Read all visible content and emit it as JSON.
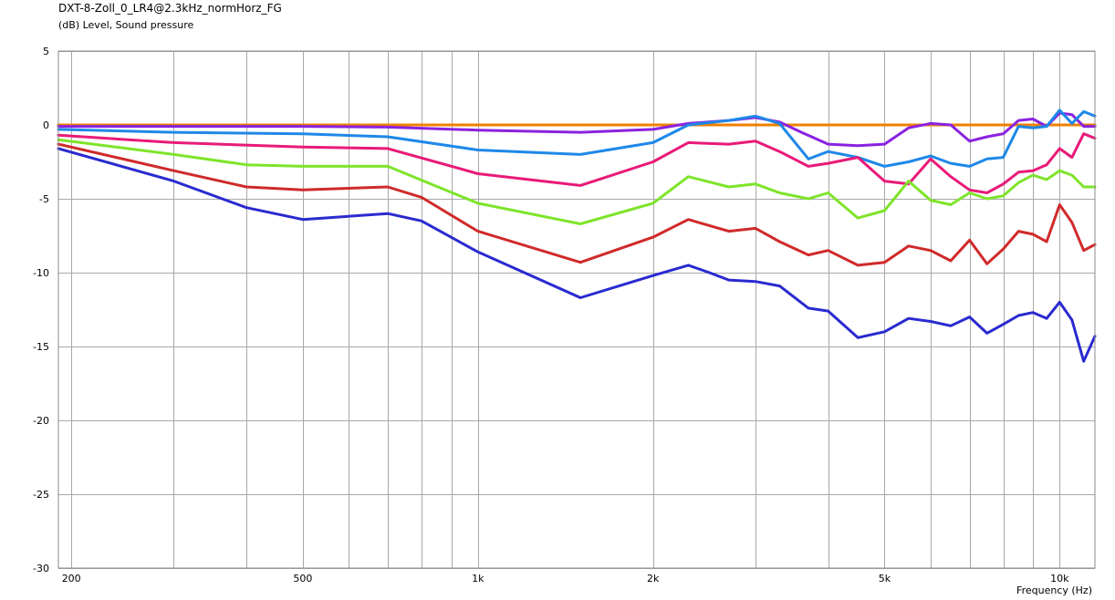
{
  "chart_data": {
    "type": "line",
    "title": "DXT-8-Zoll_0_LR4@2.3kHz_normHorz_FG",
    "subtitle": "(dB)  Level, Sound pressure",
    "xlabel": "Frequency  (Hz)",
    "x_scale": "log",
    "xlim": [
      190,
      11500
    ],
    "ylim": [
      -30,
      5
    ],
    "grid": true,
    "x_tick_labels": [
      {
        "value": 200,
        "label": "200"
      },
      {
        "value": 500,
        "label": "500"
      },
      {
        "value": 1000,
        "label": "1k"
      },
      {
        "value": 2000,
        "label": "2k"
      },
      {
        "value": 5000,
        "label": "5k"
      },
      {
        "value": 10000,
        "label": "10k"
      }
    ],
    "y_tick_labels": [
      {
        "value": 5,
        "label": "5"
      },
      {
        "value": 0,
        "label": "0"
      },
      {
        "value": -5,
        "label": "-5"
      },
      {
        "value": -10,
        "label": "-10"
      },
      {
        "value": -15,
        "label": "-15"
      },
      {
        "value": -20,
        "label": "-20"
      },
      {
        "value": -25,
        "label": "-25"
      },
      {
        "value": -30,
        "label": "-30"
      }
    ],
    "series": [
      {
        "color": "#f08000",
        "x": [
          190,
          1000,
          2000,
          5000,
          10000,
          11500
        ],
        "y": [
          0,
          0,
          0,
          0,
          0,
          0
        ]
      },
      {
        "color": "#8a22e0",
        "x": [
          190,
          500,
          700,
          1000,
          1500,
          2000,
          2300,
          2700,
          3000,
          3300,
          3600,
          4000,
          4500,
          5000,
          5500,
          6000,
          6500,
          7000,
          7500,
          8000,
          8500,
          9000,
          9500,
          10000,
          10500,
          11000,
          11500
        ],
        "y": [
          -0.1,
          -0.1,
          -0.15,
          -0.35,
          -0.5,
          -0.3,
          0.1,
          0.3,
          0.5,
          0.2,
          -0.5,
          -1.3,
          -1.4,
          -1.3,
          -0.2,
          0.1,
          0,
          -1.1,
          -0.8,
          -0.6,
          0.3,
          0.4,
          -0.1,
          0.8,
          0.7,
          -0.1,
          -0.1
        ]
      },
      {
        "color": "#1e88e8",
        "x": [
          190,
          300,
          500,
          700,
          1000,
          1500,
          2000,
          2300,
          2700,
          3000,
          3300,
          3700,
          4000,
          4500,
          5000,
          5500,
          6000,
          6500,
          7000,
          7500,
          8000,
          8500,
          9000,
          9500,
          10000,
          10500,
          11000,
          11500
        ],
        "y": [
          -0.3,
          -0.5,
          -0.6,
          -0.8,
          -1.7,
          -2,
          -1.2,
          0,
          0.3,
          0.6,
          0.1,
          -2.3,
          -1.8,
          -2.2,
          -2.8,
          -2.5,
          -2.1,
          -2.6,
          -2.8,
          -2.3,
          -2.2,
          -0.1,
          -0.2,
          -0.1,
          1,
          0.1,
          0.9,
          0.6
        ]
      },
      {
        "color": "#e81a78",
        "x": [
          190,
          300,
          500,
          700,
          1000,
          1500,
          2000,
          2300,
          2700,
          3000,
          3300,
          3700,
          4000,
          4500,
          5000,
          5500,
          6000,
          6500,
          7000,
          7500,
          8000,
          8500,
          9000,
          9500,
          10000,
          10500,
          11000,
          11500
        ],
        "y": [
          -0.7,
          -1.2,
          -1.5,
          -1.6,
          -3.3,
          -4.1,
          -2.5,
          -1.2,
          -1.3,
          -1.1,
          -1.8,
          -2.8,
          -2.6,
          -2.2,
          -3.8,
          -4.0,
          -2.3,
          -3.5,
          -4.4,
          -4.6,
          -4.0,
          -3.2,
          -3.1,
          -2.7,
          -1.6,
          -2.2,
          -0.6,
          -0.9
        ]
      },
      {
        "color": "#7ee42a",
        "x": [
          190,
          300,
          400,
          500,
          700,
          1000,
          1500,
          2000,
          2300,
          2700,
          3000,
          3300,
          3700,
          4000,
          4500,
          5000,
          5500,
          6000,
          6500,
          7000,
          7500,
          8000,
          8500,
          9000,
          9500,
          10000,
          10500,
          11000,
          11500
        ],
        "y": [
          -1,
          -2,
          -2.7,
          -2.8,
          -2.8,
          -5.3,
          -6.7,
          -5.3,
          -3.5,
          -4.2,
          -4.0,
          -4.6,
          -5.0,
          -4.6,
          -6.3,
          -5.8,
          -3.8,
          -5.1,
          -5.4,
          -4.6,
          -5.0,
          -4.8,
          -3.9,
          -3.4,
          -3.7,
          -3.1,
          -3.4,
          -4.2,
          -4.2
        ]
      },
      {
        "color": "#d02a2a",
        "x": [
          190,
          300,
          400,
          500,
          700,
          800,
          1000,
          1500,
          2000,
          2300,
          2700,
          3000,
          3300,
          3700,
          4000,
          4500,
          5000,
          5500,
          6000,
          6500,
          7000,
          7500,
          8000,
          8500,
          9000,
          9500,
          10000,
          10500,
          11000,
          11500
        ],
        "y": [
          -1.3,
          -3.1,
          -4.2,
          -4.4,
          -4.2,
          -4.9,
          -7.2,
          -9.3,
          -7.6,
          -6.4,
          -7.2,
          -7.0,
          -7.9,
          -8.8,
          -8.5,
          -9.5,
          -9.3,
          -8.2,
          -8.5,
          -9.2,
          -7.8,
          -9.4,
          -8.4,
          -7.2,
          -7.4,
          -7.9,
          -5.4,
          -6.6,
          -8.5,
          -8.1
        ]
      },
      {
        "color": "#2a2ad0",
        "x": [
          190,
          300,
          400,
          500,
          700,
          800,
          1000,
          1500,
          2000,
          2300,
          2500,
          2700,
          3000,
          3300,
          3700,
          4000,
          4500,
          5000,
          5500,
          6000,
          6500,
          7000,
          7500,
          8000,
          8500,
          9000,
          9500,
          10000,
          10500,
          11000,
          11500
        ],
        "y": [
          -1.6,
          -3.8,
          -5.6,
          -6.4,
          -6.0,
          -6.5,
          -8.6,
          -11.7,
          -10.2,
          -9.5,
          -10.0,
          -10.5,
          -10.6,
          -10.9,
          -12.4,
          -12.6,
          -14.4,
          -14.0,
          -13.1,
          -13.3,
          -13.6,
          -13.0,
          -14.1,
          -13.5,
          -12.9,
          -12.7,
          -13.1,
          -12.0,
          -13.2,
          -16.0,
          -14.3
        ]
      }
    ]
  }
}
